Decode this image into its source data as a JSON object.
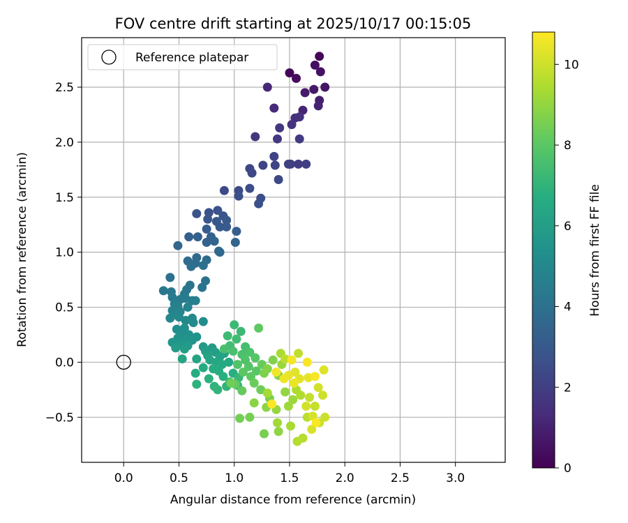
{
  "chart_data": {
    "type": "scatter",
    "title": "FOV centre drift starting at 2025/10/17 00:15:05",
    "xlabel": "Angular distance from reference (arcmin)",
    "ylabel": "Rotation from reference (arcmin)",
    "xlim": [
      -0.38,
      3.45
    ],
    "ylim": [
      -0.91,
      2.95
    ],
    "x_ticks": [
      0.0,
      0.5,
      1.0,
      1.5,
      2.0,
      2.5,
      3.0
    ],
    "x_tick_labels": [
      "0.0",
      "0.5",
      "1.0",
      "1.5",
      "2.0",
      "2.5",
      "3.0"
    ],
    "y_ticks": [
      -0.5,
      0.0,
      0.5,
      1.0,
      1.5,
      2.0,
      2.5
    ],
    "y_tick_labels": [
      "−0.5",
      "0.0",
      "0.5",
      "1.0",
      "1.5",
      "2.0",
      "2.5"
    ],
    "grid": true,
    "legend": {
      "position": "top-left",
      "entries": [
        "Reference platepar"
      ]
    },
    "reference_point": {
      "x": 0.0,
      "y": 0.0
    },
    "colorbar": {
      "label": "Hours from first FF file",
      "min": 0,
      "max": 10.8,
      "ticks": [
        0,
        2,
        4,
        6,
        8,
        10
      ],
      "tick_labels": [
        "0",
        "2",
        "4",
        "6",
        "8",
        "10"
      ],
      "colormap": "viridis"
    },
    "points_note_fields": [
      "x",
      "y",
      "hours"
    ],
    "points": [
      [
        1.5,
        2.63,
        0.1
      ],
      [
        1.77,
        2.78,
        0.2
      ],
      [
        1.56,
        2.58,
        0.3
      ],
      [
        1.73,
        2.7,
        0.4
      ],
      [
        1.78,
        2.64,
        0.5
      ],
      [
        1.82,
        2.5,
        0.6
      ],
      [
        1.72,
        2.48,
        0.7
      ],
      [
        1.64,
        2.45,
        0.8
      ],
      [
        1.77,
        2.38,
        0.9
      ],
      [
        1.76,
        2.33,
        1.0
      ],
      [
        1.62,
        2.29,
        1.1
      ],
      [
        1.3,
        2.5,
        1.2
      ],
      [
        1.36,
        2.31,
        1.3
      ],
      [
        1.55,
        2.22,
        1.4
      ],
      [
        1.59,
        2.23,
        1.5
      ],
      [
        1.52,
        2.16,
        1.6
      ],
      [
        1.41,
        2.13,
        1.7
      ],
      [
        1.19,
        2.05,
        1.75
      ],
      [
        1.39,
        2.03,
        1.8
      ],
      [
        1.59,
        2.03,
        1.85
      ],
      [
        1.49,
        1.8,
        1.9
      ],
      [
        1.58,
        1.8,
        1.95
      ],
      [
        1.65,
        1.8,
        2.0
      ],
      [
        1.51,
        1.8,
        2.05
      ],
      [
        1.36,
        1.87,
        2.1
      ],
      [
        1.26,
        1.79,
        2.15
      ],
      [
        1.37,
        1.79,
        2.2
      ],
      [
        1.14,
        1.76,
        2.25
      ],
      [
        1.16,
        1.72,
        2.3
      ],
      [
        1.4,
        1.66,
        2.35
      ],
      [
        0.91,
        1.56,
        2.4
      ],
      [
        1.04,
        1.56,
        2.45
      ],
      [
        1.14,
        1.58,
        2.5
      ],
      [
        1.24,
        1.49,
        2.55
      ],
      [
        1.04,
        1.51,
        2.6
      ],
      [
        1.22,
        1.44,
        2.65
      ],
      [
        0.85,
        1.38,
        2.7
      ],
      [
        0.77,
        1.36,
        2.75
      ],
      [
        0.66,
        1.35,
        2.8
      ],
      [
        0.9,
        1.33,
        2.85
      ],
      [
        0.76,
        1.3,
        2.9
      ],
      [
        0.84,
        1.28,
        2.95
      ],
      [
        0.93,
        1.29,
        3.0
      ],
      [
        0.87,
        1.23,
        3.05
      ],
      [
        0.93,
        1.23,
        3.1
      ],
      [
        0.75,
        1.21,
        3.15
      ],
      [
        1.02,
        1.19,
        3.2
      ],
      [
        0.59,
        1.14,
        3.25
      ],
      [
        0.67,
        1.14,
        3.3
      ],
      [
        0.79,
        1.14,
        3.35
      ],
      [
        0.75,
        1.09,
        3.4
      ],
      [
        0.82,
        1.1,
        3.45
      ],
      [
        1.01,
        1.09,
        3.5
      ],
      [
        0.49,
        1.06,
        3.55
      ],
      [
        0.86,
        1.01,
        3.6
      ],
      [
        0.87,
        1.0,
        3.65
      ],
      [
        0.66,
        0.95,
        3.7
      ],
      [
        0.75,
        0.93,
        3.75
      ],
      [
        0.58,
        0.92,
        3.8
      ],
      [
        0.65,
        0.9,
        3.85
      ],
      [
        0.61,
        0.87,
        3.9
      ],
      [
        0.72,
        0.88,
        3.95
      ],
      [
        0.42,
        0.77,
        4.0
      ],
      [
        0.74,
        0.74,
        4.05
      ],
      [
        0.6,
        0.7,
        4.1
      ],
      [
        0.71,
        0.68,
        4.15
      ],
      [
        0.57,
        0.66,
        4.2
      ],
      [
        0.36,
        0.65,
        4.25
      ],
      [
        0.43,
        0.64,
        4.3
      ],
      [
        0.55,
        0.62,
        4.35
      ],
      [
        0.44,
        0.59,
        4.4
      ],
      [
        0.51,
        0.57,
        4.45
      ],
      [
        0.56,
        0.58,
        4.5
      ],
      [
        0.62,
        0.56,
        4.55
      ],
      [
        0.65,
        0.56,
        4.6
      ],
      [
        0.46,
        0.53,
        4.65
      ],
      [
        0.49,
        0.51,
        4.7
      ],
      [
        0.58,
        0.5,
        4.75
      ],
      [
        0.44,
        0.47,
        4.8
      ],
      [
        0.51,
        0.46,
        4.85
      ],
      [
        0.48,
        0.43,
        4.9
      ],
      [
        0.42,
        0.4,
        4.95
      ],
      [
        0.5,
        0.41,
        5.0
      ],
      [
        0.62,
        0.4,
        5.05
      ],
      [
        0.56,
        0.38,
        5.1
      ],
      [
        0.63,
        0.36,
        5.15
      ],
      [
        0.72,
        0.37,
        5.2
      ],
      [
        0.48,
        0.3,
        5.25
      ],
      [
        0.55,
        0.31,
        5.3
      ],
      [
        0.52,
        0.27,
        5.35
      ],
      [
        0.59,
        0.25,
        5.4
      ],
      [
        0.66,
        0.23,
        5.45
      ],
      [
        0.49,
        0.22,
        5.5
      ],
      [
        0.55,
        0.21,
        5.55
      ],
      [
        0.62,
        0.2,
        5.6
      ],
      [
        0.44,
        0.18,
        5.65
      ],
      [
        0.51,
        0.16,
        5.7
      ],
      [
        0.58,
        0.15,
        5.75
      ],
      [
        0.72,
        0.14,
        5.8
      ],
      [
        0.8,
        0.13,
        5.85
      ],
      [
        0.47,
        0.13,
        5.9
      ],
      [
        0.55,
        0.12,
        5.95
      ],
      [
        0.74,
        0.1,
        6.0
      ],
      [
        0.83,
        0.09,
        6.05
      ],
      [
        0.91,
        0.08,
        6.1
      ],
      [
        0.76,
        0.06,
        6.15
      ],
      [
        0.87,
        0.05,
        6.2
      ],
      [
        0.66,
        0.03,
        6.25
      ],
      [
        0.53,
        0.03,
        6.3
      ],
      [
        0.78,
        0.02,
        6.35
      ],
      [
        0.84,
        0.0,
        6.4
      ],
      [
        0.95,
        0.0,
        6.45
      ],
      [
        0.89,
        -0.02,
        6.5
      ],
      [
        0.72,
        -0.05,
        6.55
      ],
      [
        0.81,
        -0.06,
        6.6
      ],
      [
        0.65,
        -0.1,
        6.65
      ],
      [
        0.86,
        -0.08,
        6.7
      ],
      [
        0.99,
        -0.1,
        6.75
      ],
      [
        0.9,
        -0.13,
        6.8
      ],
      [
        0.77,
        -0.15,
        6.85
      ],
      [
        0.66,
        -0.2,
        6.9
      ],
      [
        0.82,
        -0.22,
        6.95
      ],
      [
        0.93,
        -0.22,
        7.0
      ],
      [
        0.85,
        -0.25,
        7.05
      ],
      [
        1.03,
        -0.21,
        7.1
      ],
      [
        0.96,
        -0.18,
        7.15
      ],
      [
        1.04,
        -0.14,
        7.2
      ],
      [
        1.06,
        0.28,
        7.25
      ],
      [
        1.0,
        0.34,
        7.3
      ],
      [
        0.94,
        0.24,
        7.35
      ],
      [
        1.02,
        0.21,
        7.4
      ],
      [
        0.96,
        0.15,
        7.45
      ],
      [
        1.1,
        0.14,
        7.5
      ],
      [
        0.91,
        0.12,
        7.55
      ],
      [
        0.99,
        0.1,
        7.6
      ],
      [
        1.07,
        0.07,
        7.65
      ],
      [
        1.14,
        0.09,
        7.7
      ],
      [
        1.1,
        0.02,
        7.75
      ],
      [
        1.03,
        -0.02,
        7.8
      ],
      [
        1.13,
        -0.04,
        7.85
      ],
      [
        1.19,
        0.04,
        7.9
      ],
      [
        1.2,
        -0.08,
        7.95
      ],
      [
        1.08,
        -0.09,
        8.0
      ],
      [
        1.15,
        -0.13,
        8.05
      ],
      [
        1.22,
        0.31,
        8.1
      ],
      [
        1.01,
        -0.2,
        8.15
      ],
      [
        1.07,
        -0.26,
        8.2
      ],
      [
        1.25,
        -0.02,
        8.25
      ],
      [
        1.18,
        -0.19,
        8.3
      ],
      [
        1.24,
        -0.25,
        8.35
      ],
      [
        0.97,
        -0.19,
        8.4
      ],
      [
        1.05,
        -0.51,
        8.45
      ],
      [
        1.14,
        -0.5,
        8.5
      ],
      [
        1.27,
        -0.65,
        8.55
      ],
      [
        1.32,
        -0.33,
        8.6
      ],
      [
        1.27,
        -0.1,
        8.65
      ],
      [
        1.35,
        0.02,
        8.7
      ],
      [
        1.3,
        -0.06,
        8.75
      ],
      [
        1.4,
        -0.12,
        8.8
      ],
      [
        1.18,
        -0.37,
        8.85
      ],
      [
        1.29,
        -0.41,
        8.9
      ],
      [
        1.4,
        -0.63,
        8.95
      ],
      [
        1.46,
        -0.27,
        9.0
      ],
      [
        1.38,
        -0.43,
        9.05
      ],
      [
        1.43,
        -0.02,
        9.1
      ],
      [
        1.53,
        -0.34,
        9.15
      ],
      [
        1.49,
        -0.4,
        9.2
      ],
      [
        1.39,
        -0.55,
        9.25
      ],
      [
        1.3,
        -0.28,
        9.3
      ],
      [
        1.51,
        -0.58,
        9.35
      ],
      [
        1.42,
        0.08,
        9.4
      ],
      [
        1.56,
        -0.25,
        9.45
      ],
      [
        1.6,
        -0.3,
        9.5
      ],
      [
        1.57,
        -0.72,
        9.55
      ],
      [
        1.62,
        -0.69,
        9.6
      ],
      [
        1.66,
        -0.5,
        9.65
      ],
      [
        1.46,
        0.03,
        9.7
      ],
      [
        1.58,
        0.08,
        9.75
      ],
      [
        1.68,
        -0.32,
        9.8
      ],
      [
        1.73,
        -0.4,
        9.85
      ],
      [
        1.77,
        -0.55,
        9.9
      ],
      [
        1.82,
        -0.5,
        9.95
      ],
      [
        1.8,
        -0.3,
        10.0
      ],
      [
        1.76,
        -0.23,
        10.05
      ],
      [
        1.65,
        -0.4,
        10.1
      ],
      [
        1.71,
        -0.49,
        10.15
      ],
      [
        1.7,
        -0.61,
        10.2
      ],
      [
        1.81,
        -0.07,
        10.25
      ],
      [
        1.55,
        -0.09,
        10.3
      ],
      [
        1.59,
        -0.15,
        10.35
      ],
      [
        1.67,
        -0.14,
        10.4
      ],
      [
        1.49,
        -0.12,
        10.45
      ],
      [
        1.54,
        -0.19,
        10.5
      ],
      [
        1.45,
        -0.15,
        10.55
      ],
      [
        1.38,
        -0.09,
        10.6
      ],
      [
        1.52,
        0.02,
        10.65
      ],
      [
        1.73,
        -0.13,
        10.7
      ],
      [
        1.66,
        0.0,
        10.72
      ],
      [
        1.74,
        -0.55,
        10.75
      ],
      [
        1.34,
        -0.38,
        10.78
      ]
    ]
  }
}
